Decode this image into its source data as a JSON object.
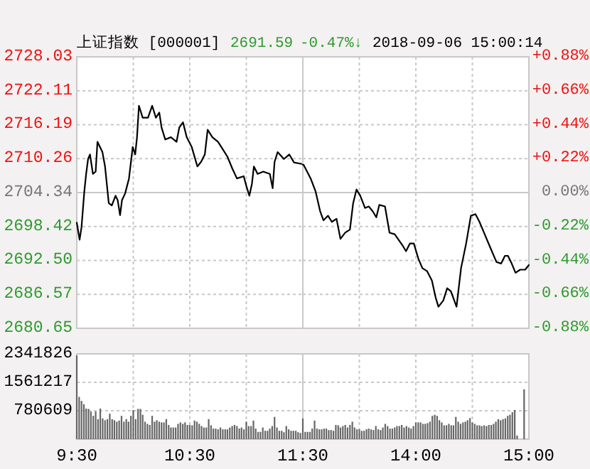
{
  "chart_data": [
    {
      "type": "line",
      "title": "上证指数 [000001]",
      "annotations": [
        "2691.59",
        "-0.47%↓",
        "2018-09-06 15:00:14"
      ],
      "color": "#000000",
      "grid": true,
      "tick_labels": "y",
      "ref_lines": [
        {
          "axis": "y",
          "value": 2704.34,
          "color": "#c8c8c8"
        }
      ],
      "xlim": [
        9.5,
        11.5
      ],
      "xticks": [
        {
          "value": 9.5,
          "label": null
        },
        {
          "value": 10,
          "label": null
        },
        {
          "value": 10.5,
          "label": null
        },
        {
          "value": 11,
          "label": null
        },
        {
          "value": 11.5,
          "label": null
        }
      ],
      "ylim": [
        2680.65,
        2728.03
      ],
      "yticks": [
        2680.65,
        2686.57,
        {
          "value": 2692.5,
          "label": "2692.50"
        },
        2698.42,
        2704.34,
        2710.26,
        2716.19,
        2722.11,
        2728.03
      ],
      "x": [
        9.5,
        9.525,
        9.542,
        9.567,
        9.583,
        9.6,
        9.617,
        9.643,
        9.667,
        9.683,
        9.727,
        9.75,
        9.783,
        9.81,
        9.843,
        9.862,
        9.883,
        9.9,
        9.928,
        9.962,
        9.995,
        10.017,
        10.033,
        10.05,
        10.083,
        10.13,
        10.167,
        10.2,
        10.23,
        10.25,
        10.283,
        10.333,
        10.383,
        10.407,
        10.44,
        10.473,
        10.517,
        10.567,
        10.6,
        10.633,
        10.658,
        10.7,
        10.75,
        10.792,
        10.833,
        10.877,
        10.917,
        10.977,
        11.0,
        11.027,
        11.05,
        11.067,
        11.1,
        11.15,
        11.208,
        11.233,
        11.25,
        11.277,
        11.333,
        11.38,
        11.422,
        11.5
      ],
      "values": [
        2699.1,
        2696.1,
        2698.3,
        2704.6,
        2707.6,
        2710.2,
        2711.0,
        2707.6,
        2708.0,
        2713.2,
        2711.4,
        2708.9,
        2702.5,
        2702.1,
        2703.8,
        2703.0,
        2700.4,
        2703.0,
        2704.2,
        2706.8,
        2712.3,
        2711.0,
        2714.0,
        2719.5,
        2717.4,
        2717.4,
        2719.5,
        2717.4,
        2718.3,
        2715.7,
        2713.6,
        2714.0,
        2713.2,
        2715.7,
        2716.6,
        2714.0,
        2712.3,
        2708.9,
        2709.7,
        2711.0,
        2715.3,
        2714.0,
        2713.2,
        2711.9,
        2710.6,
        2708.5,
        2706.8,
        2707.2,
        2705.5,
        2703.8,
        2705.9,
        2708.9,
        2707.6,
        2708.0,
        2707.6,
        2705.1,
        2709.7,
        2711.4,
        2710.2,
        2711.0,
        2709.6,
        2709.3
      ]
    },
    {
      "type": "line",
      "grid": true,
      "tick_labels": "y",
      "ref_lines": [
        {
          "axis": "y2",
          "value": 0,
          "color": "#c8c8c8"
        }
      ],
      "xlim": [
        13,
        15
      ],
      "xticks": [
        {
          "value": 13,
          "label": null
        },
        {
          "value": 13.5,
          "label": null
        },
        {
          "value": 14,
          "label": null
        },
        {
          "value": 14.5,
          "label": null
        },
        {
          "value": 15,
          "label": null
        }
      ],
      "y2lim": [
        -0.88,
        0.88
      ],
      "y2ticks": [
        {
          "value": -0.88,
          "label": "-0.88%"
        },
        {
          "value": -0.66,
          "label": "-0.66%"
        },
        {
          "value": -0.44,
          "label": "-0.44%"
        },
        {
          "value": -0.22,
          "label": "-0.22%"
        },
        {
          "value": 0,
          "label": "0.00%"
        },
        {
          "value": 0.22,
          "label": "+0.22%"
        },
        {
          "value": 0.44,
          "label": "+0.44%"
        },
        {
          "value": 0.66,
          "label": "+0.66%"
        },
        {
          "value": 0.88,
          "label": "+0.88%"
        }
      ],
      "x": [
        13.0,
        13.007,
        13.07,
        13.112,
        13.153,
        13.183,
        13.223,
        13.257,
        13.298,
        13.333,
        13.375,
        13.417,
        13.445,
        13.475,
        13.508,
        13.55,
        13.583,
        13.617,
        13.65,
        13.677,
        13.727,
        13.767,
        13.813,
        13.88,
        13.913,
        13.948,
        13.982,
        14.023,
        14.058,
        14.1,
        14.142,
        14.175,
        14.2,
        14.243,
        14.277,
        14.31,
        14.36,
        14.4,
        14.445,
        14.487,
        14.528,
        14.563,
        14.603,
        14.655,
        14.713,
        14.755,
        14.788,
        14.815,
        14.848,
        14.882,
        14.923,
        14.967,
        15.0
      ],
      "series": [
        {
          "color": "#000000",
          "axis": "y2",
          "values": [
            0.18,
            0.18,
            0.09,
            0.01,
            -0.12,
            -0.18,
            -0.15,
            -0.19,
            -0.17,
            -0.3,
            -0.26,
            -0.24,
            -0.07,
            0.02,
            -0.02,
            -0.1,
            -0.09,
            -0.12,
            -0.16,
            -0.08,
            -0.09,
            -0.26,
            -0.27,
            -0.34,
            -0.38,
            -0.33,
            -0.33,
            -0.43,
            -0.49,
            -0.51,
            -0.57,
            -0.68,
            -0.74,
            -0.7,
            -0.62,
            -0.64,
            -0.74,
            -0.49,
            -0.33,
            -0.15,
            -0.14,
            -0.19,
            -0.26,
            -0.35,
            -0.45,
            -0.46,
            -0.41,
            -0.41,
            -0.46,
            -0.52,
            -0.5,
            -0.5,
            -0.47
          ]
        }
      ]
    },
    {
      "type": "bar",
      "color": "#666666",
      "grid": true,
      "xlim": [
        9.5,
        11.5
      ],
      "xticks": [
        {
          "value": 9.5,
          "label": "9:30"
        },
        {
          "value": 10,
          "label": null
        },
        {
          "value": 10.5,
          "label": "10:30"
        },
        {
          "value": 11,
          "label": null
        },
        {
          "value": 11.5,
          "label": "11:30"
        }
      ],
      "ylim": [
        0,
        2341826
      ],
      "yticks": [
        {
          "value": 0,
          "label": null
        },
        780609,
        1561217,
        2341826
      ],
      "x": [
        9.5,
        9.521,
        9.542,
        9.563,
        9.583,
        9.604,
        9.625,
        9.646,
        9.667,
        9.688,
        9.708,
        9.729,
        9.75,
        9.771,
        9.792,
        9.813,
        9.833,
        9.854,
        9.875,
        9.896,
        9.917,
        9.938,
        9.958,
        9.979,
        10,
        10.021,
        10.042,
        10.063,
        10.083,
        10.104,
        10.125,
        10.146,
        10.167,
        10.188,
        10.208,
        10.229,
        10.25,
        10.271,
        10.292,
        10.313,
        10.333,
        10.354,
        10.375,
        10.396,
        10.417,
        10.438,
        10.458,
        10.479,
        10.5,
        10.521,
        10.542,
        10.563,
        10.583,
        10.604,
        10.625,
        10.646,
        10.667,
        10.688,
        10.708,
        10.729,
        10.75,
        10.771,
        10.792,
        10.813,
        10.833,
        10.854,
        10.875,
        10.896,
        10.917,
        10.938,
        10.958,
        10.979,
        11,
        11.021,
        11.042,
        11.063,
        11.083,
        11.104,
        11.125,
        11.146,
        11.167,
        11.188,
        11.208,
        11.229,
        11.25,
        11.271,
        11.292,
        11.313,
        11.333,
        11.354,
        11.375,
        11.396,
        11.417,
        11.438,
        11.458,
        11.479
      ],
      "values": [
        2300000,
        1160000,
        1050000,
        960000,
        840000,
        830000,
        760000,
        640000,
        760000,
        550000,
        840000,
        570000,
        520000,
        550000,
        700000,
        550000,
        520000,
        480000,
        510000,
        640000,
        480000,
        550000,
        480000,
        640000,
        800000,
        550000,
        830000,
        830000,
        670000,
        480000,
        420000,
        390000,
        640000,
        480000,
        520000,
        480000,
        460000,
        460000,
        550000,
        390000,
        320000,
        320000,
        320000,
        420000,
        460000,
        420000,
        460000,
        390000,
        390000,
        380000,
        510000,
        480000,
        420000,
        360000,
        320000,
        320000,
        550000,
        380000,
        290000,
        290000,
        270000,
        320000,
        270000,
        270000,
        270000,
        320000,
        360000,
        390000,
        360000,
        290000,
        320000,
        270000,
        480000,
        360000,
        360000,
        510000,
        290000,
        200000,
        200000,
        320000,
        230000,
        230000,
        290000,
        360000,
        610000,
        320000,
        230000,
        230000,
        190000,
        360000,
        270000,
        230000,
        230000,
        230000,
        190000,
        170000
      ]
    },
    {
      "type": "bar",
      "color": "#666666",
      "grid": true,
      "tick_labels": "x",
      "xlim": [
        13,
        15
      ],
      "xticks": [
        {
          "value": 13,
          "label": null
        },
        {
          "value": 13.5,
          "label": null
        },
        {
          "value": 14,
          "label": "14:00"
        },
        {
          "value": 14.5,
          "label": null
        },
        {
          "value": 15,
          "label": "15:00"
        }
      ],
      "ylim": [
        0,
        2341826
      ],
      "yticks": [
        {
          "value": 0,
          "label": null
        },
        {
          "value": 780609,
          "label": null
        },
        {
          "value": 1561217,
          "label": null
        },
        {
          "value": 2341826,
          "label": null
        }
      ],
      "x": [
        13,
        13.021,
        13.042,
        13.063,
        13.083,
        13.104,
        13.125,
        13.146,
        13.167,
        13.188,
        13.208,
        13.229,
        13.25,
        13.271,
        13.292,
        13.313,
        13.333,
        13.354,
        13.375,
        13.396,
        13.417,
        13.438,
        13.458,
        13.479,
        13.5,
        13.521,
        13.542,
        13.563,
        13.583,
        13.604,
        13.625,
        13.646,
        13.667,
        13.688,
        13.708,
        13.729,
        13.75,
        13.771,
        13.792,
        13.813,
        13.833,
        13.854,
        13.875,
        13.896,
        13.917,
        13.938,
        13.958,
        13.979,
        14,
        14.021,
        14.042,
        14.063,
        14.083,
        14.104,
        14.125,
        14.146,
        14.167,
        14.188,
        14.208,
        14.229,
        14.25,
        14.271,
        14.292,
        14.313,
        14.333,
        14.354,
        14.375,
        14.396,
        14.417,
        14.438,
        14.458,
        14.479,
        14.5,
        14.521,
        14.542,
        14.563,
        14.583,
        14.604,
        14.625,
        14.646,
        14.667,
        14.688,
        14.708,
        14.729,
        14.75,
        14.771,
        14.792,
        14.813,
        14.833,
        14.854,
        14.875,
        14.896,
        14.917,
        14.938,
        14.958
      ],
      "values": [
        570000,
        200000,
        200000,
        200000,
        290000,
        510000,
        290000,
        270000,
        270000,
        290000,
        290000,
        250000,
        250000,
        230000,
        390000,
        380000,
        320000,
        360000,
        390000,
        320000,
        390000,
        480000,
        320000,
        270000,
        270000,
        230000,
        230000,
        270000,
        290000,
        270000,
        250000,
        360000,
        270000,
        250000,
        320000,
        420000,
        360000,
        290000,
        290000,
        320000,
        360000,
        360000,
        390000,
        320000,
        360000,
        320000,
        290000,
        360000,
        460000,
        460000,
        460000,
        420000,
        420000,
        440000,
        480000,
        640000,
        670000,
        640000,
        520000,
        460000,
        380000,
        380000,
        420000,
        380000,
        380000,
        610000,
        480000,
        420000,
        460000,
        480000,
        520000,
        580000,
        460000,
        420000,
        380000,
        380000,
        360000,
        380000,
        360000,
        390000,
        390000,
        420000,
        480000,
        550000,
        520000,
        550000,
        570000,
        640000,
        670000,
        740000,
        800000,
        100000,
        null,
        null,
        1370000
      ]
    }
  ]
}
